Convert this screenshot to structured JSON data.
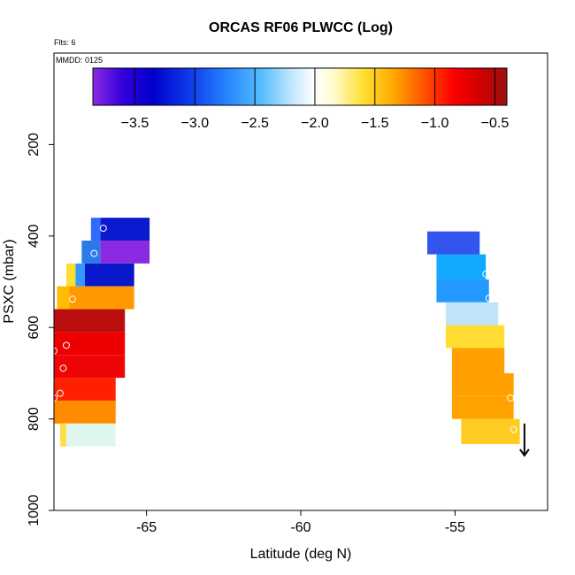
{
  "chart_data": {
    "type": "heatmap",
    "title": "ORCAS RF06 PLWCC (Log)",
    "flts_label": "Flts: 6",
    "date_label": "MMDD: 0125",
    "xlabel": "Latitude (deg N)",
    "ylabel": "PSXC (mbar)",
    "xlim": [
      -68,
      -52
    ],
    "ylim": [
      1000,
      0
    ],
    "x_ticks": [
      -65,
      -60,
      -55
    ],
    "y_ticks": [
      200,
      400,
      600,
      800,
      1000
    ],
    "colorbar": {
      "range": [
        -3.85,
        -0.4
      ],
      "ticks": [
        -3.5,
        -3.0,
        -2.5,
        -2.0,
        -1.5,
        -1.0,
        -0.5
      ],
      "stops": [
        {
          "v": -3.85,
          "c": "#8a2be2"
        },
        {
          "v": -3.6,
          "c": "#3300dd"
        },
        {
          "v": -3.35,
          "c": "#0000cc"
        },
        {
          "v": -3.0,
          "c": "#1144ee"
        },
        {
          "v": -2.7,
          "c": "#2a8cff"
        },
        {
          "v": -2.45,
          "c": "#55bbff"
        },
        {
          "v": -2.2,
          "c": "#bfe6ff"
        },
        {
          "v": -2.0,
          "c": "#ffffff"
        },
        {
          "v": -1.85,
          "c": "#fffbd0"
        },
        {
          "v": -1.6,
          "c": "#ffe033"
        },
        {
          "v": -1.35,
          "c": "#ffaa00"
        },
        {
          "v": -1.1,
          "c": "#ff5500"
        },
        {
          "v": -0.85,
          "c": "#ff0000"
        },
        {
          "v": -0.6,
          "c": "#cc0000"
        },
        {
          "v": -0.4,
          "c": "#991111"
        }
      ]
    },
    "cells": [
      {
        "x0": -66.5,
        "x1": -64.9,
        "y0": 360,
        "y1": 410,
        "color": "#0a1bcf"
      },
      {
        "x0": -66.8,
        "x1": -66.5,
        "y0": 360,
        "y1": 410,
        "color": "#2f6bff"
      },
      {
        "x0": -66.5,
        "x1": -64.9,
        "y0": 410,
        "y1": 460,
        "color": "#8a2be2"
      },
      {
        "x0": -67.1,
        "x1": -66.5,
        "y0": 410,
        "y1": 460,
        "color": "#2a7be8"
      },
      {
        "x0": -67.6,
        "x1": -67.3,
        "y0": 460,
        "y1": 510,
        "color": "#ffdd33"
      },
      {
        "x0": -67.3,
        "x1": -67.0,
        "y0": 460,
        "y1": 510,
        "color": "#3399ff"
      },
      {
        "x0": -67.0,
        "x1": -65.4,
        "y0": 460,
        "y1": 510,
        "color": "#0a18cc"
      },
      {
        "x0": -67.9,
        "x1": -67.5,
        "y0": 510,
        "y1": 560,
        "color": "#ffbb00"
      },
      {
        "x0": -67.5,
        "x1": -65.4,
        "y0": 510,
        "y1": 560,
        "color": "#ff9900"
      },
      {
        "x0": -68.0,
        "x1": -65.7,
        "y0": 560,
        "y1": 610,
        "color": "#bb0e0e"
      },
      {
        "x0": -68.0,
        "x1": -65.7,
        "y0": 610,
        "y1": 660,
        "color": "#ee0000"
      },
      {
        "x0": -68.0,
        "x1": -65.7,
        "y0": 660,
        "y1": 710,
        "color": "#ee0505"
      },
      {
        "x0": -68.0,
        "x1": -66.0,
        "y0": 710,
        "y1": 760,
        "color": "#ff2000"
      },
      {
        "x0": -68.0,
        "x1": -66.0,
        "y0": 760,
        "y1": 810,
        "color": "#ff8c00"
      },
      {
        "x0": -67.8,
        "x1": -67.6,
        "y0": 810,
        "y1": 860,
        "color": "#ffdd44"
      },
      {
        "x0": -67.6,
        "x1": -66.0,
        "y0": 810,
        "y1": 860,
        "color": "#dff6ee"
      },
      {
        "x0": -55.9,
        "x1": -54.2,
        "y0": 390,
        "y1": 440,
        "color": "#3355ee"
      },
      {
        "x0": -55.6,
        "x1": -54.0,
        "y0": 440,
        "y1": 495,
        "color": "#11aaff"
      },
      {
        "x0": -55.6,
        "x1": -53.9,
        "y0": 495,
        "y1": 545,
        "color": "#2299ff"
      },
      {
        "x0": -55.3,
        "x1": -53.6,
        "y0": 545,
        "y1": 595,
        "color": "#bfe3f7"
      },
      {
        "x0": -55.3,
        "x1": -53.4,
        "y0": 595,
        "y1": 645,
        "color": "#ffdd33"
      },
      {
        "x0": -55.1,
        "x1": -53.4,
        "y0": 645,
        "y1": 700,
        "color": "#ffa000"
      },
      {
        "x0": -55.1,
        "x1": -53.1,
        "y0": 700,
        "y1": 750,
        "color": "#ffa000"
      },
      {
        "x0": -55.1,
        "x1": -53.1,
        "y0": 750,
        "y1": 800,
        "color": "#ffa200"
      },
      {
        "x0": -54.8,
        "x1": -52.9,
        "y0": 800,
        "y1": 855,
        "color": "#ffcc22"
      }
    ],
    "markers": [
      {
        "x": -66.4,
        "y": 383
      },
      {
        "x": -66.7,
        "y": 438
      },
      {
        "x": -67.4,
        "y": 538
      },
      {
        "x": -67.6,
        "y": 639
      },
      {
        "x": -68.0,
        "y": 651
      },
      {
        "x": -67.7,
        "y": 689
      },
      {
        "x": -67.8,
        "y": 744
      },
      {
        "x": -68.0,
        "y": 754
      },
      {
        "x": -67.9,
        "y": 851
      },
      {
        "x": -54.0,
        "y": 483
      },
      {
        "x": -53.9,
        "y": 536
      },
      {
        "x": -53.2,
        "y": 754
      },
      {
        "x": -53.1,
        "y": 823
      }
    ],
    "arrow": {
      "x": -52.75,
      "y0": 810,
      "y1": 880
    }
  }
}
